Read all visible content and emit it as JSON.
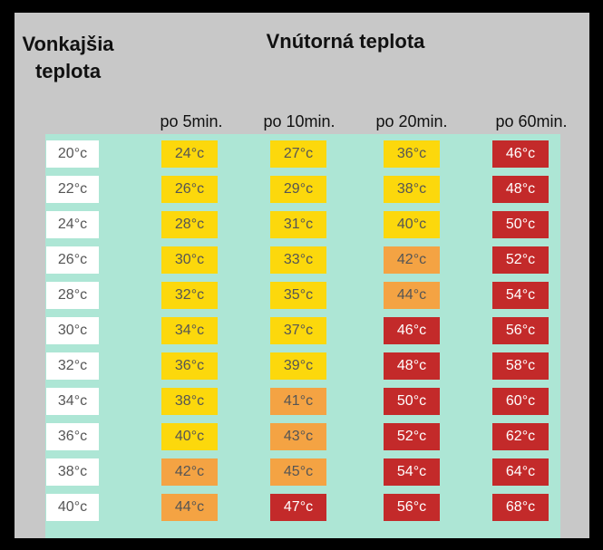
{
  "headers": {
    "outside_line1": "Vonkajšia",
    "outside_line2": "teplota",
    "inside": "Vnútorná teplota"
  },
  "colors": {
    "yellow": "#fcd80c",
    "orange": "#f4a343",
    "red": "#c32a2a",
    "table_bg": "#ade6d5",
    "panel_bg": "#c8c8c8"
  },
  "chart_data": {
    "type": "table",
    "columns": [
      "po 5min.",
      "po 10min.",
      "po 20min.",
      "po 60min."
    ],
    "rows": [
      {
        "outside": "20°c",
        "values": [
          "24°c",
          "27°c",
          "36°c",
          "46°c"
        ],
        "levels": [
          "yellow",
          "yellow",
          "yellow",
          "red"
        ]
      },
      {
        "outside": "22°c",
        "values": [
          "26°c",
          "29°c",
          "38°c",
          "48°c"
        ],
        "levels": [
          "yellow",
          "yellow",
          "yellow",
          "red"
        ]
      },
      {
        "outside": "24°c",
        "values": [
          "28°c",
          "31°c",
          "40°c",
          "50°c"
        ],
        "levels": [
          "yellow",
          "yellow",
          "yellow",
          "red"
        ]
      },
      {
        "outside": "26°c",
        "values": [
          "30°c",
          "33°c",
          "42°c",
          "52°c"
        ],
        "levels": [
          "yellow",
          "yellow",
          "orange",
          "red"
        ]
      },
      {
        "outside": "28°c",
        "values": [
          "32°c",
          "35°c",
          "44°c",
          "54°c"
        ],
        "levels": [
          "yellow",
          "yellow",
          "orange",
          "red"
        ]
      },
      {
        "outside": "30°c",
        "values": [
          "34°c",
          "37°c",
          "46°c",
          "56°c"
        ],
        "levels": [
          "yellow",
          "yellow",
          "red",
          "red"
        ]
      },
      {
        "outside": "32°c",
        "values": [
          "36°c",
          "39°c",
          "48°c",
          "58°c"
        ],
        "levels": [
          "yellow",
          "yellow",
          "red",
          "red"
        ]
      },
      {
        "outside": "34°c",
        "values": [
          "38°c",
          "41°c",
          "50°c",
          "60°c"
        ],
        "levels": [
          "yellow",
          "orange",
          "red",
          "red"
        ]
      },
      {
        "outside": "36°c",
        "values": [
          "40°c",
          "43°c",
          "52°c",
          "62°c"
        ],
        "levels": [
          "yellow",
          "orange",
          "red",
          "red"
        ]
      },
      {
        "outside": "38°c",
        "values": [
          "42°c",
          "45°c",
          "54°c",
          "64°c"
        ],
        "levels": [
          "orange",
          "orange",
          "red",
          "red"
        ]
      },
      {
        "outside": "40°c",
        "values": [
          "44°c",
          "47°c",
          "56°c",
          "68°c"
        ],
        "levels": [
          "orange",
          "red",
          "red",
          "red"
        ]
      }
    ]
  }
}
